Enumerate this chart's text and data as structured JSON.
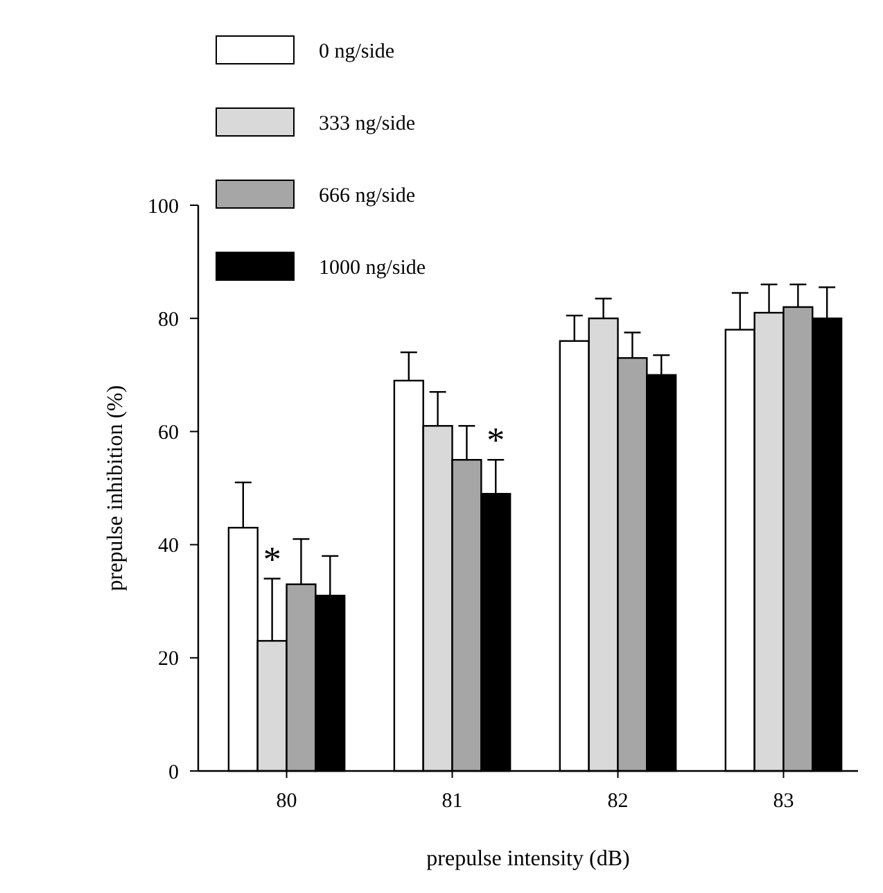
{
  "chart_data": {
    "type": "bar",
    "xlabel": "prepulse intensity (dB)",
    "ylabel": "prepulse inhibition (%)",
    "categories": [
      "80",
      "81",
      "82",
      "83"
    ],
    "series": [
      {
        "name": "0 ng/side",
        "color": "#ffffff",
        "values": [
          43,
          69,
          76,
          78
        ],
        "errors": [
          [
            43,
            51
          ],
          [
            69,
            74
          ],
          [
            76,
            80.5
          ],
          [
            78,
            84.5
          ]
        ]
      },
      {
        "name": "333 ng/side",
        "color": "#d9d9d9",
        "values": [
          23,
          61,
          80,
          81
        ],
        "errors": [
          [
            23,
            34
          ],
          [
            61,
            67
          ],
          [
            80,
            83.5
          ],
          [
            81,
            86
          ]
        ]
      },
      {
        "name": "666 ng/side",
        "color": "#a6a6a6",
        "values": [
          33,
          55,
          73,
          82
        ],
        "errors": [
          [
            33,
            41
          ],
          [
            55,
            61
          ],
          [
            73,
            77.5
          ],
          [
            82,
            86
          ]
        ]
      },
      {
        "name": "1000 ng/side",
        "color": "#000000",
        "values": [
          31,
          49,
          70,
          80
        ],
        "errors": [
          [
            31,
            38
          ],
          [
            49,
            55
          ],
          [
            70,
            73.5
          ],
          [
            80,
            85.5
          ]
        ]
      }
    ],
    "annotations": [
      {
        "text": "*",
        "x": "80",
        "y": 34
      },
      {
        "text": "*",
        "x": "81",
        "y": 55
      }
    ],
    "ylim": [
      0,
      100
    ],
    "yticks": [
      0,
      20,
      40,
      60,
      80,
      100
    ],
    "grid": false,
    "legend": "top left"
  }
}
